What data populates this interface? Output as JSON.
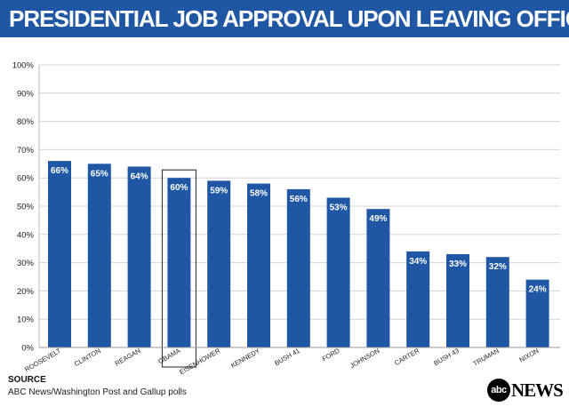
{
  "title": "PRESIDENTIAL JOB APPROVAL UPON LEAVING OFFICE",
  "source": {
    "heading": "SOURCE",
    "text": "ABC News/Washington Post and Gallup polls"
  },
  "logo": {
    "mark": "abc",
    "word": "NEWS"
  },
  "colors": {
    "bar": "#1f57a4",
    "title_bg": "#1f57a4",
    "highlight_box": "#222222"
  },
  "chart_data": {
    "type": "bar",
    "title": "PRESIDENTIAL JOB APPROVAL UPON LEAVING OFFICE",
    "categories": [
      "ROOSEVELT",
      "CLINTON",
      "REAGAN",
      "OBAMA",
      "EISENHOWER",
      "KENNEDY",
      "BUSH 41",
      "FORD",
      "JOHNSON",
      "CARTER",
      "BUSH 43",
      "TRUMAN",
      "NIXON"
    ],
    "values": [
      66,
      65,
      64,
      60,
      59,
      58,
      56,
      53,
      49,
      34,
      33,
      32,
      24
    ],
    "value_labels": [
      "66%",
      "65%",
      "64%",
      "60%",
      "59%",
      "58%",
      "56%",
      "53%",
      "49%",
      "34%",
      "33%",
      "32%",
      "24%"
    ],
    "highlighted": "OBAMA",
    "yticks": [
      "0%",
      "10%",
      "20%",
      "30%",
      "40%",
      "50%",
      "60%",
      "70%",
      "80%",
      "90%",
      "100%"
    ],
    "ylim": [
      0,
      100
    ],
    "xlabel": "",
    "ylabel": "",
    "grid": true
  }
}
